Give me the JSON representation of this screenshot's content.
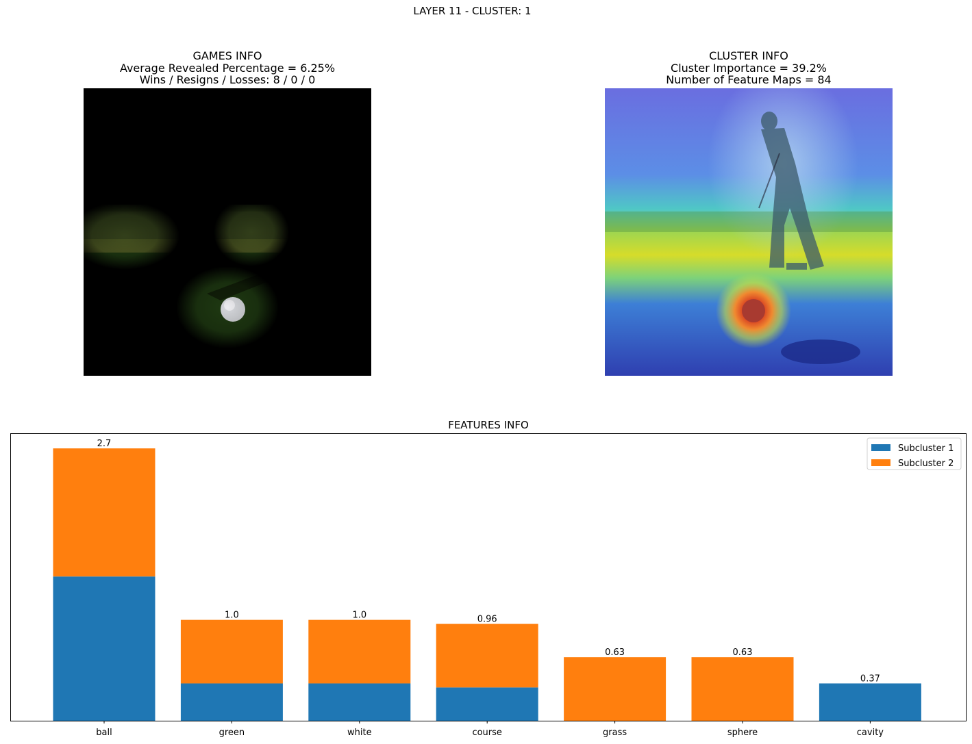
{
  "suptitle": "LAYER 11 - CLUSTER: 1",
  "games_info": {
    "title": "GAMES INFO",
    "line1": "Average Revealed Percentage = 6.25%",
    "line2": "Wins / Resigns / Losses: 8 / 0 / 0"
  },
  "cluster_info": {
    "title": "CLUSTER INFO",
    "line1": "Cluster Importance = 39.2%",
    "line2": "Number of Feature Maps = 84"
  },
  "chart_data": {
    "type": "bar",
    "stacked": true,
    "title": "FEATURES INFO",
    "categories": [
      "ball",
      "green",
      "white",
      "course",
      "grass",
      "sphere",
      "cavity"
    ],
    "series": [
      {
        "name": "Subcluster 1",
        "color": "#1f77b4",
        "values": [
          1.43,
          0.37,
          0.37,
          0.33,
          0.0,
          0.0,
          0.37
        ]
      },
      {
        "name": "Subcluster 2",
        "color": "#ff7f0e",
        "values": [
          1.27,
          0.63,
          0.63,
          0.63,
          0.63,
          0.63,
          0.0
        ]
      }
    ],
    "total_labels": [
      "2.7",
      "1.0",
      "1.0",
      "0.96",
      "0.63",
      "0.63",
      "0.37"
    ],
    "ylim": [
      0,
      2.85
    ],
    "legend": "top-right",
    "grid": false,
    "show_yticks": false
  }
}
